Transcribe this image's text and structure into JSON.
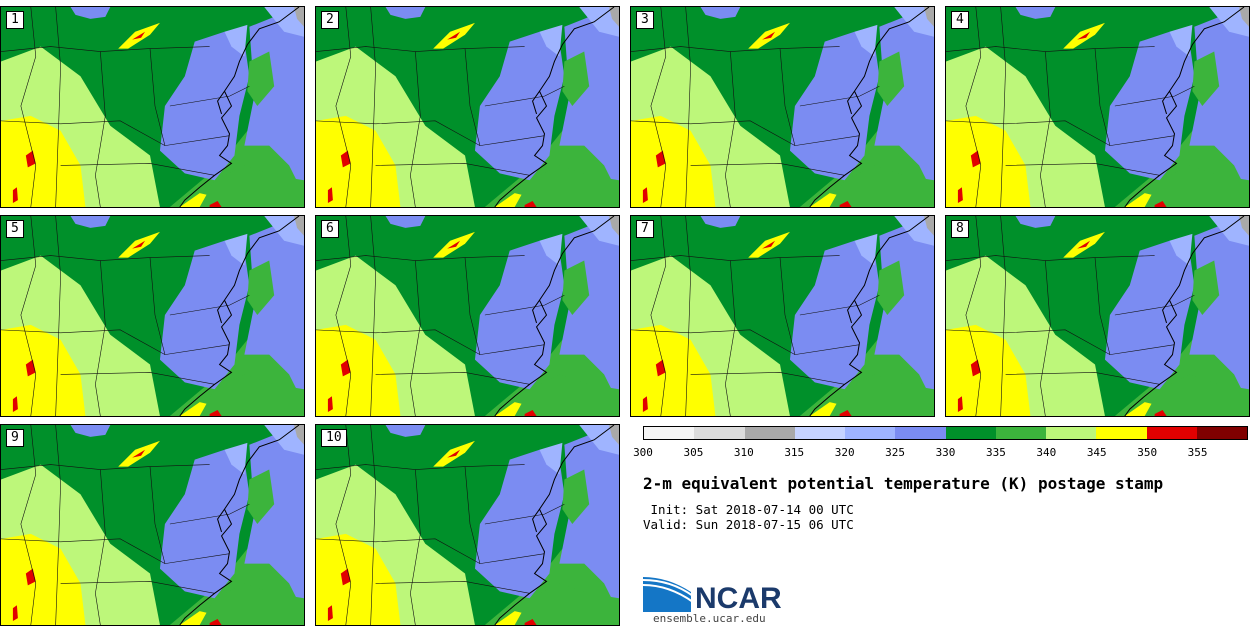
{
  "stamps": [
    {
      "label": "1"
    },
    {
      "label": "2"
    },
    {
      "label": "3"
    },
    {
      "label": "4"
    },
    {
      "label": "5"
    },
    {
      "label": "6"
    },
    {
      "label": "7"
    },
    {
      "label": "8"
    },
    {
      "label": "9"
    },
    {
      "label": "10"
    }
  ],
  "colorbar": {
    "colors": [
      "#f5f5f5",
      "#dcdcdc",
      "#a9a9a9",
      "#c6d3ff",
      "#9fb4ff",
      "#7b8cf2",
      "#00902a",
      "#3cb43c",
      "#bdf77a",
      "#ffff00",
      "#e10000",
      "#800000"
    ],
    "ticks": [
      "300",
      "305",
      "310",
      "315",
      "320",
      "325",
      "330",
      "335",
      "340",
      "345",
      "350",
      "355"
    ]
  },
  "title": "2-m equivalent potential temperature (K) postage stamp",
  "init_line": " Init: Sat 2018-07-14 00 UTC",
  "valid_line": "Valid: Sun 2018-07-15 06 UTC",
  "logo_text": "NCAR",
  "site_url": "ensemble.ucar.edu"
}
